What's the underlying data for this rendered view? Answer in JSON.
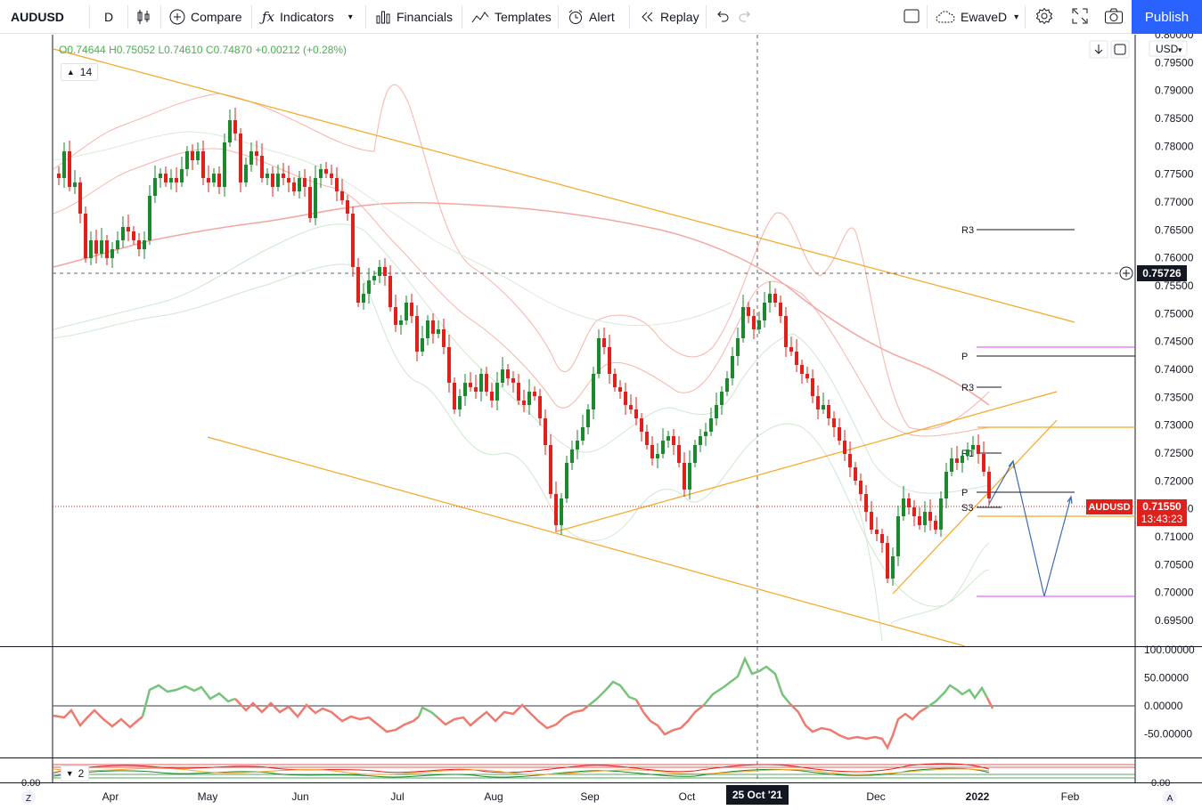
{
  "toolbar": {
    "symbol": "AUDUSD",
    "interval": "D",
    "compare": "Compare",
    "indicators": "Indicators",
    "financials": "Financials",
    "templates": "Templates",
    "alert": "Alert",
    "replay": "Replay",
    "layout_name": "EwaveD",
    "publish": "Publish"
  },
  "legend": {
    "open_label": "O",
    "open": "0.74644",
    "high_label": "H",
    "high": "0.75052",
    "low_label": "L",
    "low": "0.74610",
    "close_label": "C",
    "close": "0.74870",
    "change": "+0.00212 (+0.28%)",
    "indicator_period": "14",
    "sub_pane_count": "2"
  },
  "price_axis": {
    "currency": "USD",
    "ticks": [
      "0.80000",
      "0.79500",
      "0.79000",
      "0.78500",
      "0.78000",
      "0.77500",
      "0.77000",
      "0.76500",
      "0.76000",
      "0.75500",
      "0.75000",
      "0.74500",
      "0.74000",
      "0.73500",
      "0.73000",
      "0.72500",
      "0.72000",
      "0.71500",
      "0.71000",
      "0.70500",
      "0.70000",
      "0.69500"
    ],
    "crosshair_price": "0.75726",
    "last_symbol": "AUDUSD",
    "last_price": "0.71550",
    "countdown": "13:43:23"
  },
  "osc_axis": {
    "ticks": [
      "100.00000",
      "50.00000",
      "0.00000",
      "-50.00000"
    ],
    "bottom_right": "0.00",
    "bottom_left": "0.00"
  },
  "time_axis": {
    "labels": [
      "Apr",
      "May",
      "Jun",
      "Jul",
      "Aug",
      "Sep",
      "Oct",
      "Dec",
      "2022",
      "Feb"
    ],
    "crosshair_date": "25 Oct '21",
    "left_btn": "Z",
    "right_btn": "A"
  },
  "pivots": {
    "r3_upper": "R3",
    "p_upper": "P",
    "r3_lower": "R3",
    "r1": "R1",
    "p_lower": "P",
    "s3": "S3"
  },
  "colors": {
    "bull": "#1b8a2e",
    "bear": "#e0201b",
    "trendline": "#f5a623",
    "projection": "#3d6bb3",
    "accent": "#2962ff",
    "pivot_magenta": "#e040fb",
    "osc_green": "#76c479",
    "osc_red": "#ef7a6e"
  }
}
